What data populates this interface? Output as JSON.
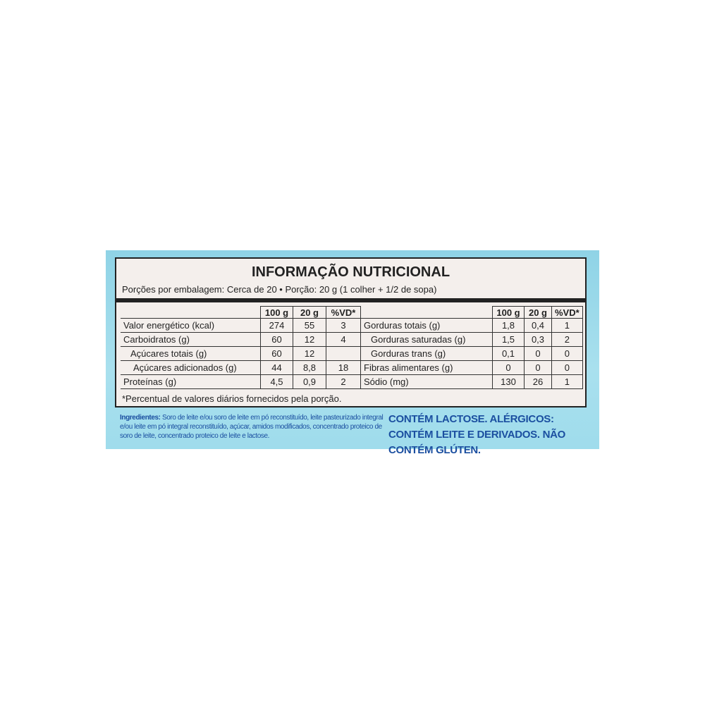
{
  "label": {
    "title": "INFORMAÇÃO NUTRICIONAL",
    "servings": "Porções por embalagem: Cerca de 20 • Porção: 20 g (1 colher + 1/2 de sopa)",
    "left_table": {
      "header": [
        "100 g",
        "20 g",
        "%VD*"
      ],
      "rows": [
        {
          "name": "Valor energético (kcal)",
          "values": [
            "274",
            "55",
            "3"
          ]
        },
        {
          "name": "Carboidratos (g)",
          "values": [
            "60",
            "12",
            "4"
          ]
        },
        {
          "name": "Açúcares totais (g)",
          "values": [
            "60",
            "12"
          ]
        },
        {
          "name": "Açúcares adicionados (g)",
          "values": [
            "44",
            "8,8",
            "18"
          ]
        },
        {
          "name": "Proteínas (g)",
          "values": [
            "4,5",
            "0,9",
            "2"
          ]
        }
      ]
    },
    "right_table": {
      "header": [
        "100 g",
        "20 g",
        "%VD*"
      ],
      "rows": [
        {
          "name": "Gorduras totais (g)",
          "values": [
            "1,8",
            "0,4",
            "1"
          ]
        },
        {
          "name": "Gorduras saturadas (g)",
          "values": [
            "1,5",
            "0,3",
            "2"
          ]
        },
        {
          "name": "Gorduras trans (g)",
          "values": [
            "0,1",
            "0",
            "0"
          ]
        },
        {
          "name": "Fibras alimentares (g)",
          "values": [
            "0",
            "0",
            "0"
          ]
        },
        {
          "name": "Sódio (mg)",
          "values": [
            "130",
            "26",
            "1"
          ]
        }
      ]
    },
    "footnote": "*Percentual de valores diários fornecidos pela porção.",
    "ingredients_label": "Ingredientes:",
    "ingredients": "Soro de leite e/ou soro de leite em pó reconstituído, leite pasteurizado integral e/ou leite em pó integral reconstituído, açúcar, amidos modificados, concentrado proteico de soro de leite, concentrado proteico de leite e lactose.",
    "allergens": "CONTÉM LACTOSE. ALÉRGICOS: CONTÉM LEITE E DERIVADOS. NÃO CONTÉM GLÚTEN."
  }
}
